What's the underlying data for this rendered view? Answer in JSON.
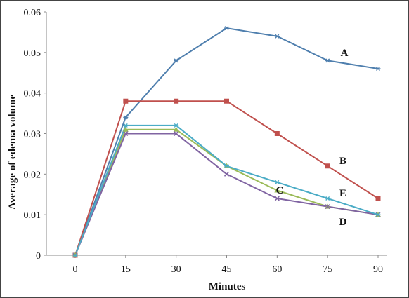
{
  "chart_data": {
    "type": "line",
    "title": "",
    "xlabel": "Minutes",
    "ylabel": "Average of edema volume",
    "x": [
      0,
      15,
      30,
      45,
      60,
      75,
      90
    ],
    "x_tick_labels": [
      "0",
      "15",
      "30",
      "45",
      "60",
      "75",
      "90"
    ],
    "ylim": [
      0,
      0.06
    ],
    "y_tick_labels": [
      "0",
      "0.01",
      "0.02",
      "0.03",
      "0.04",
      "0.05",
      "0.06"
    ],
    "grid": false,
    "legend": "inline labels near line ends",
    "series": [
      {
        "name": "A",
        "color": "#4f7fae",
        "marker": "star",
        "values": [
          0,
          0.034,
          0.048,
          0.056,
          0.054,
          0.048,
          0.046
        ]
      },
      {
        "name": "B",
        "color": "#c0504d",
        "marker": "square",
        "values": [
          0,
          0.038,
          0.038,
          0.038,
          0.03,
          0.022,
          0.014
        ]
      },
      {
        "name": "C",
        "color": "#9bbb59",
        "marker": "triangle",
        "values": [
          0,
          0.031,
          0.031,
          0.022,
          0.016,
          0.012,
          0.01
        ]
      },
      {
        "name": "D",
        "color": "#8064a2",
        "marker": "x",
        "values": [
          0,
          0.03,
          0.03,
          0.02,
          0.014,
          0.012,
          0.01
        ]
      },
      {
        "name": "E",
        "color": "#4bacc6",
        "marker": "star",
        "values": [
          0,
          0.032,
          0.032,
          0.022,
          0.018,
          0.014,
          0.01
        ]
      }
    ]
  }
}
